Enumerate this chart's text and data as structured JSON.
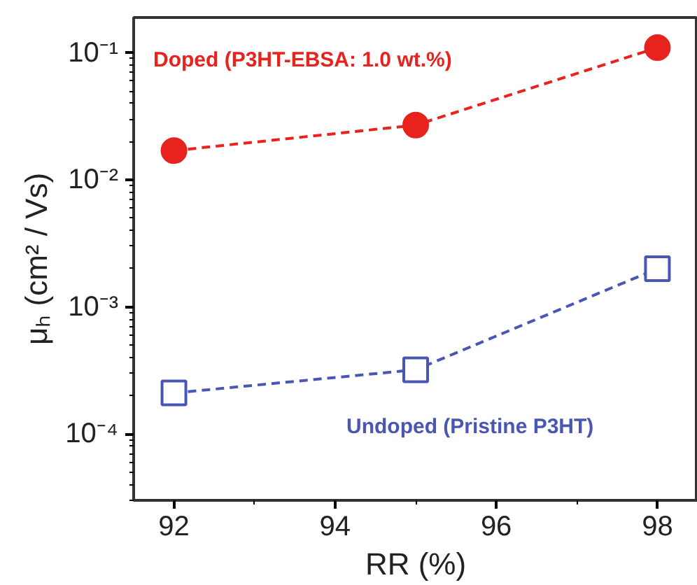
{
  "chart_data": {
    "type": "line",
    "xlabel": "RR (%)",
    "ylabel": "μₕ (cm² / Vs)",
    "x": [
      92,
      95,
      98
    ],
    "series": [
      {
        "name": "Doped (P3HT-EBSA: 1.0 wt.%)",
        "color": "#e8221c",
        "marker": "circle",
        "values": [
          0.017,
          0.027,
          0.11
        ]
      },
      {
        "name": "Undoped (Pristine P3HT)",
        "color": "#4a56b4",
        "marker": "square",
        "values": [
          0.00021,
          0.00032,
          0.002
        ]
      }
    ],
    "log": "y",
    "xlim": [
      91.5,
      98.5
    ],
    "xticks": [
      92,
      94,
      96,
      98
    ],
    "ylim": [
      3e-05,
      0.19
    ],
    "yticks": [
      {
        "value": 0.0001,
        "label": "10⁻⁴"
      },
      {
        "value": 0.001,
        "label": "10⁻³"
      },
      {
        "value": 0.01,
        "label": "10⁻²"
      },
      {
        "value": 0.1,
        "label": "10⁻¹"
      }
    ],
    "grid": false,
    "line_style": "dashed"
  }
}
